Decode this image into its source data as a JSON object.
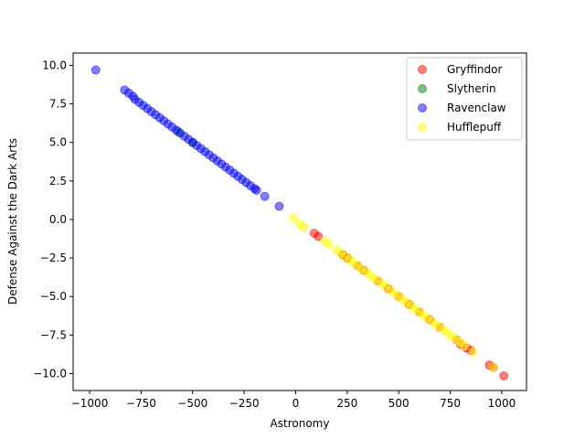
{
  "chart_data": {
    "type": "scatter",
    "xlabel": "Astronomy",
    "ylabel": "Defense Against the Dark Arts",
    "xlim": [
      -1080,
      1120
    ],
    "ylim": [
      -11.1,
      10.8
    ],
    "xticks": [
      -1000,
      -750,
      -500,
      -250,
      0,
      250,
      500,
      750,
      1000
    ],
    "xtick_labels": [
      "−1000",
      "−750",
      "−500",
      "−250",
      "0",
      "250",
      "500",
      "750",
      "1000"
    ],
    "yticks": [
      10.0,
      7.5,
      5.0,
      2.5,
      0.0,
      -2.5,
      -5.0,
      -7.5,
      -10.0
    ],
    "ytick_labels": [
      "10.0",
      "7.5",
      "5.0",
      "2.5",
      "0.0",
      "−2.5",
      "−5.0",
      "−7.5",
      "−10.0"
    ],
    "grid": false,
    "legend_position": "top-right",
    "series": [
      {
        "name": "Gryffindor",
        "color": "#ff0000",
        "x": [
          90,
          110,
          230,
          250,
          300,
          330,
          400,
          450,
          500,
          550,
          600,
          650,
          700,
          780,
          800,
          830,
          850,
          940,
          960,
          1010
        ],
        "y": [
          -0.9,
          -1.1,
          -2.3,
          -2.5,
          -3.0,
          -3.3,
          -4.0,
          -4.5,
          -5.0,
          -5.5,
          -6.0,
          -6.5,
          -7.0,
          -7.8,
          -8.1,
          -8.35,
          -8.5,
          -9.45,
          -9.6,
          -10.15
        ]
      },
      {
        "name": "Slytherin",
        "color": "#008000",
        "x": [
          -570,
          -500
        ],
        "y": [
          5.7,
          5.0
        ]
      },
      {
        "name": "Ravenclaw",
        "color": "#0000ff",
        "x": [
          -970,
          -830,
          -810,
          -790,
          -780,
          -760,
          -740,
          -720,
          -700,
          -680,
          -660,
          -640,
          -620,
          -600,
          -580,
          -560,
          -540,
          -520,
          -500,
          -480,
          -460,
          -440,
          -420,
          -400,
          -380,
          -360,
          -340,
          -320,
          -300,
          -280,
          -260,
          -240,
          -220,
          -200,
          -190,
          -150,
          -80
        ],
        "y": [
          9.7,
          8.4,
          8.2,
          8.0,
          7.8,
          7.6,
          7.4,
          7.2,
          7.0,
          6.8,
          6.6,
          6.4,
          6.2,
          6.0,
          5.8,
          5.6,
          5.4,
          5.2,
          5.0,
          4.8,
          4.6,
          4.4,
          4.2,
          4.0,
          3.8,
          3.6,
          3.4,
          3.2,
          3.0,
          2.8,
          2.6,
          2.4,
          2.2,
          2.0,
          1.9,
          1.5,
          0.85
        ]
      },
      {
        "name": "Hufflepuff",
        "color": "#ffff00",
        "x": [
          -10,
          20,
          40,
          140,
          160,
          200,
          220,
          240,
          260,
          280,
          300,
          320,
          340,
          360,
          380,
          400,
          420,
          440,
          460,
          480,
          500,
          520,
          540,
          560,
          580,
          600,
          620,
          640,
          660,
          680,
          700,
          720,
          740,
          760,
          780,
          800,
          820,
          860,
          960
        ],
        "y": [
          0.1,
          -0.3,
          -0.5,
          -1.4,
          -1.6,
          -2.0,
          -2.2,
          -2.4,
          -2.6,
          -2.8,
          -3.0,
          -3.2,
          -3.4,
          -3.6,
          -3.8,
          -4.0,
          -4.2,
          -4.4,
          -4.6,
          -4.8,
          -5.0,
          -5.2,
          -5.4,
          -5.6,
          -5.8,
          -6.0,
          -6.2,
          -6.4,
          -6.6,
          -6.8,
          -7.0,
          -7.2,
          -7.4,
          -7.6,
          -7.8,
          -8.0,
          -8.2,
          -8.6,
          -9.6
        ]
      }
    ]
  }
}
